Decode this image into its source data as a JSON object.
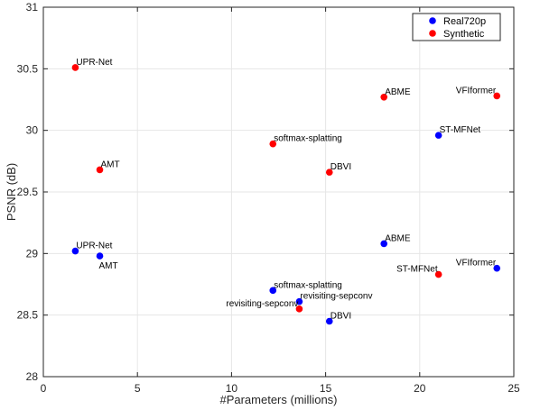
{
  "chart_data": {
    "type": "scatter",
    "title": "",
    "xlabel": "#Parameters   (millions)",
    "ylabel": "PSNR  (dB)",
    "xlim": [
      0,
      25
    ],
    "ylim": [
      28,
      31
    ],
    "xticks": [
      0,
      5,
      10,
      15,
      20,
      25
    ],
    "yticks": [
      28,
      28.5,
      29,
      29.5,
      30,
      30.5,
      31
    ],
    "xtick_labels": [
      "0",
      "5",
      "10",
      "15",
      "20",
      "25"
    ],
    "ytick_labels": [
      "28",
      "28.5",
      "29",
      "29.5",
      "30",
      "30.5",
      "31"
    ],
    "grid": true,
    "legend_position": "top-right",
    "series": [
      {
        "name": "Real720p",
        "color": "#0000ff",
        "points": [
          {
            "label": "UPR-Net",
            "x": 1.7,
            "y": 29.02,
            "anchor": "start"
          },
          {
            "label": "AMT",
            "x": 3.0,
            "y": 28.98,
            "anchor": "start-below"
          },
          {
            "label": "softmax-splatting",
            "x": 12.2,
            "y": 28.7,
            "anchor": "start"
          },
          {
            "label": "revisiting-sepconv",
            "x": 13.6,
            "y": 28.61,
            "anchor": "start"
          },
          {
            "label": "DBVI",
            "x": 15.2,
            "y": 28.45,
            "anchor": "start"
          },
          {
            "label": "ABME",
            "x": 18.1,
            "y": 29.08,
            "anchor": "start"
          },
          {
            "label": "VFIformer",
            "x": 24.1,
            "y": 28.88,
            "anchor": "end"
          }
        ]
      },
      {
        "name": "Synthetic",
        "color": "#ff0000",
        "points": [
          {
            "label": "UPR-Net",
            "x": 1.7,
            "y": 30.51,
            "anchor": "start"
          },
          {
            "label": "AMT",
            "x": 3.0,
            "y": 29.68,
            "anchor": "start"
          },
          {
            "label": "softmax-splatting",
            "x": 12.2,
            "y": 29.89,
            "anchor": "start"
          },
          {
            "label": "revisiting-sepconv",
            "x": 13.6,
            "y": 28.55,
            "anchor": "end"
          },
          {
            "label": "DBVI",
            "x": 15.2,
            "y": 29.66,
            "anchor": "start"
          },
          {
            "label": "ABME",
            "x": 18.1,
            "y": 30.27,
            "anchor": "start"
          },
          {
            "label": "VFIformer",
            "x": 24.1,
            "y": 30.28,
            "anchor": "end"
          }
        ]
      }
    ],
    "extra_points": [
      {
        "label": "ST-MFNet",
        "series": "Real720p",
        "x": 21.0,
        "y": 29.96,
        "anchor": "start"
      },
      {
        "label": "ST-MFNet",
        "series": "Synthetic",
        "x": 21.0,
        "y": 28.83,
        "anchor": "end"
      }
    ]
  }
}
